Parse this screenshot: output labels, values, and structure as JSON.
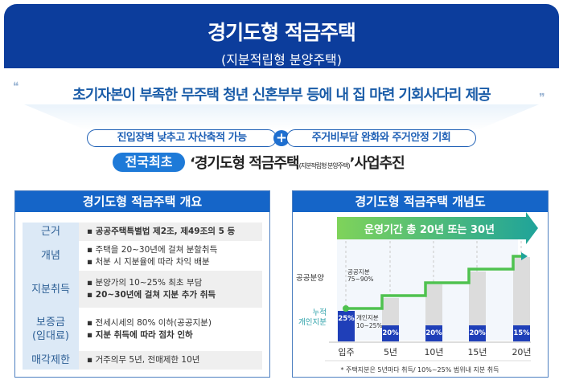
{
  "header": {
    "title": "경기도형 적금주택",
    "subtitle": "(지분적립형 분양주택)"
  },
  "tagline": "초기자본이 부족한 무주택 청년 신혼부부 등에 내 집 마련 기회사다리 제공",
  "benefits": {
    "left": "진입장벽 낮추고 자산축적 가능",
    "plus": "+",
    "right": "주거비부담 완화와 주거안정 기회"
  },
  "headline": {
    "badge": "전국최초",
    "open": "‘경기도형 적금주택",
    "small": "(지분적립형 분양주택)",
    "close": "’사업추진"
  },
  "overview": {
    "title": "경기도형 적금주택 개요",
    "rows": [
      {
        "label": "근거",
        "lines": [
          "▪ 공공주택특별법 제2조, 제49조의 5 등"
        ]
      },
      {
        "label": "개념",
        "lines": [
          "▪ 주택을 20~30년에 걸쳐 분할취득",
          "▪ 처분 시 지분율에 따라 차익 배분"
        ]
      },
      {
        "label": "지분취득",
        "lines": [
          "▪ 분양가의 10~25% 최초 부담",
          "▪ 20~30년에 걸쳐 지분 추가 취득"
        ]
      },
      {
        "label": "보증금\n(임대료)",
        "lines": [
          "▪ 전세시세의 80% 이하(공공지분)",
          "▪ 지분 취득에 따라 점차 인하"
        ]
      },
      {
        "label": "매각제한",
        "lines": [
          "▪ 거주의무 5년, 전매제한 10년"
        ]
      }
    ]
  },
  "concept": {
    "title": "경기도형 적금주택 개념도",
    "arrow_label": "운영기간 총 20년 또는 30년",
    "public_label": "공공분양",
    "public_share": "공공지분",
    "public_share_range": "75~90%",
    "cumulative_label_1": "누적",
    "cumulative_label_2": "개인지분",
    "private_share": "개인지분",
    "private_share_range": "10~25%",
    "stages": [
      "입주",
      "5년",
      "10년",
      "15년",
      "20년"
    ],
    "acquisitions": [
      "25%",
      "20%",
      "20%",
      "20%",
      "15%"
    ],
    "footnote": "* 주택지분은 5년마다 취득/ 10%~25% 범위내 지분 취득",
    "colors": {
      "private": "#1f3fb8",
      "public": "#dcdcdc",
      "line": "#4fc24f",
      "arrow_start": "#7fd35a",
      "arrow_end": "#1fa39a"
    }
  }
}
